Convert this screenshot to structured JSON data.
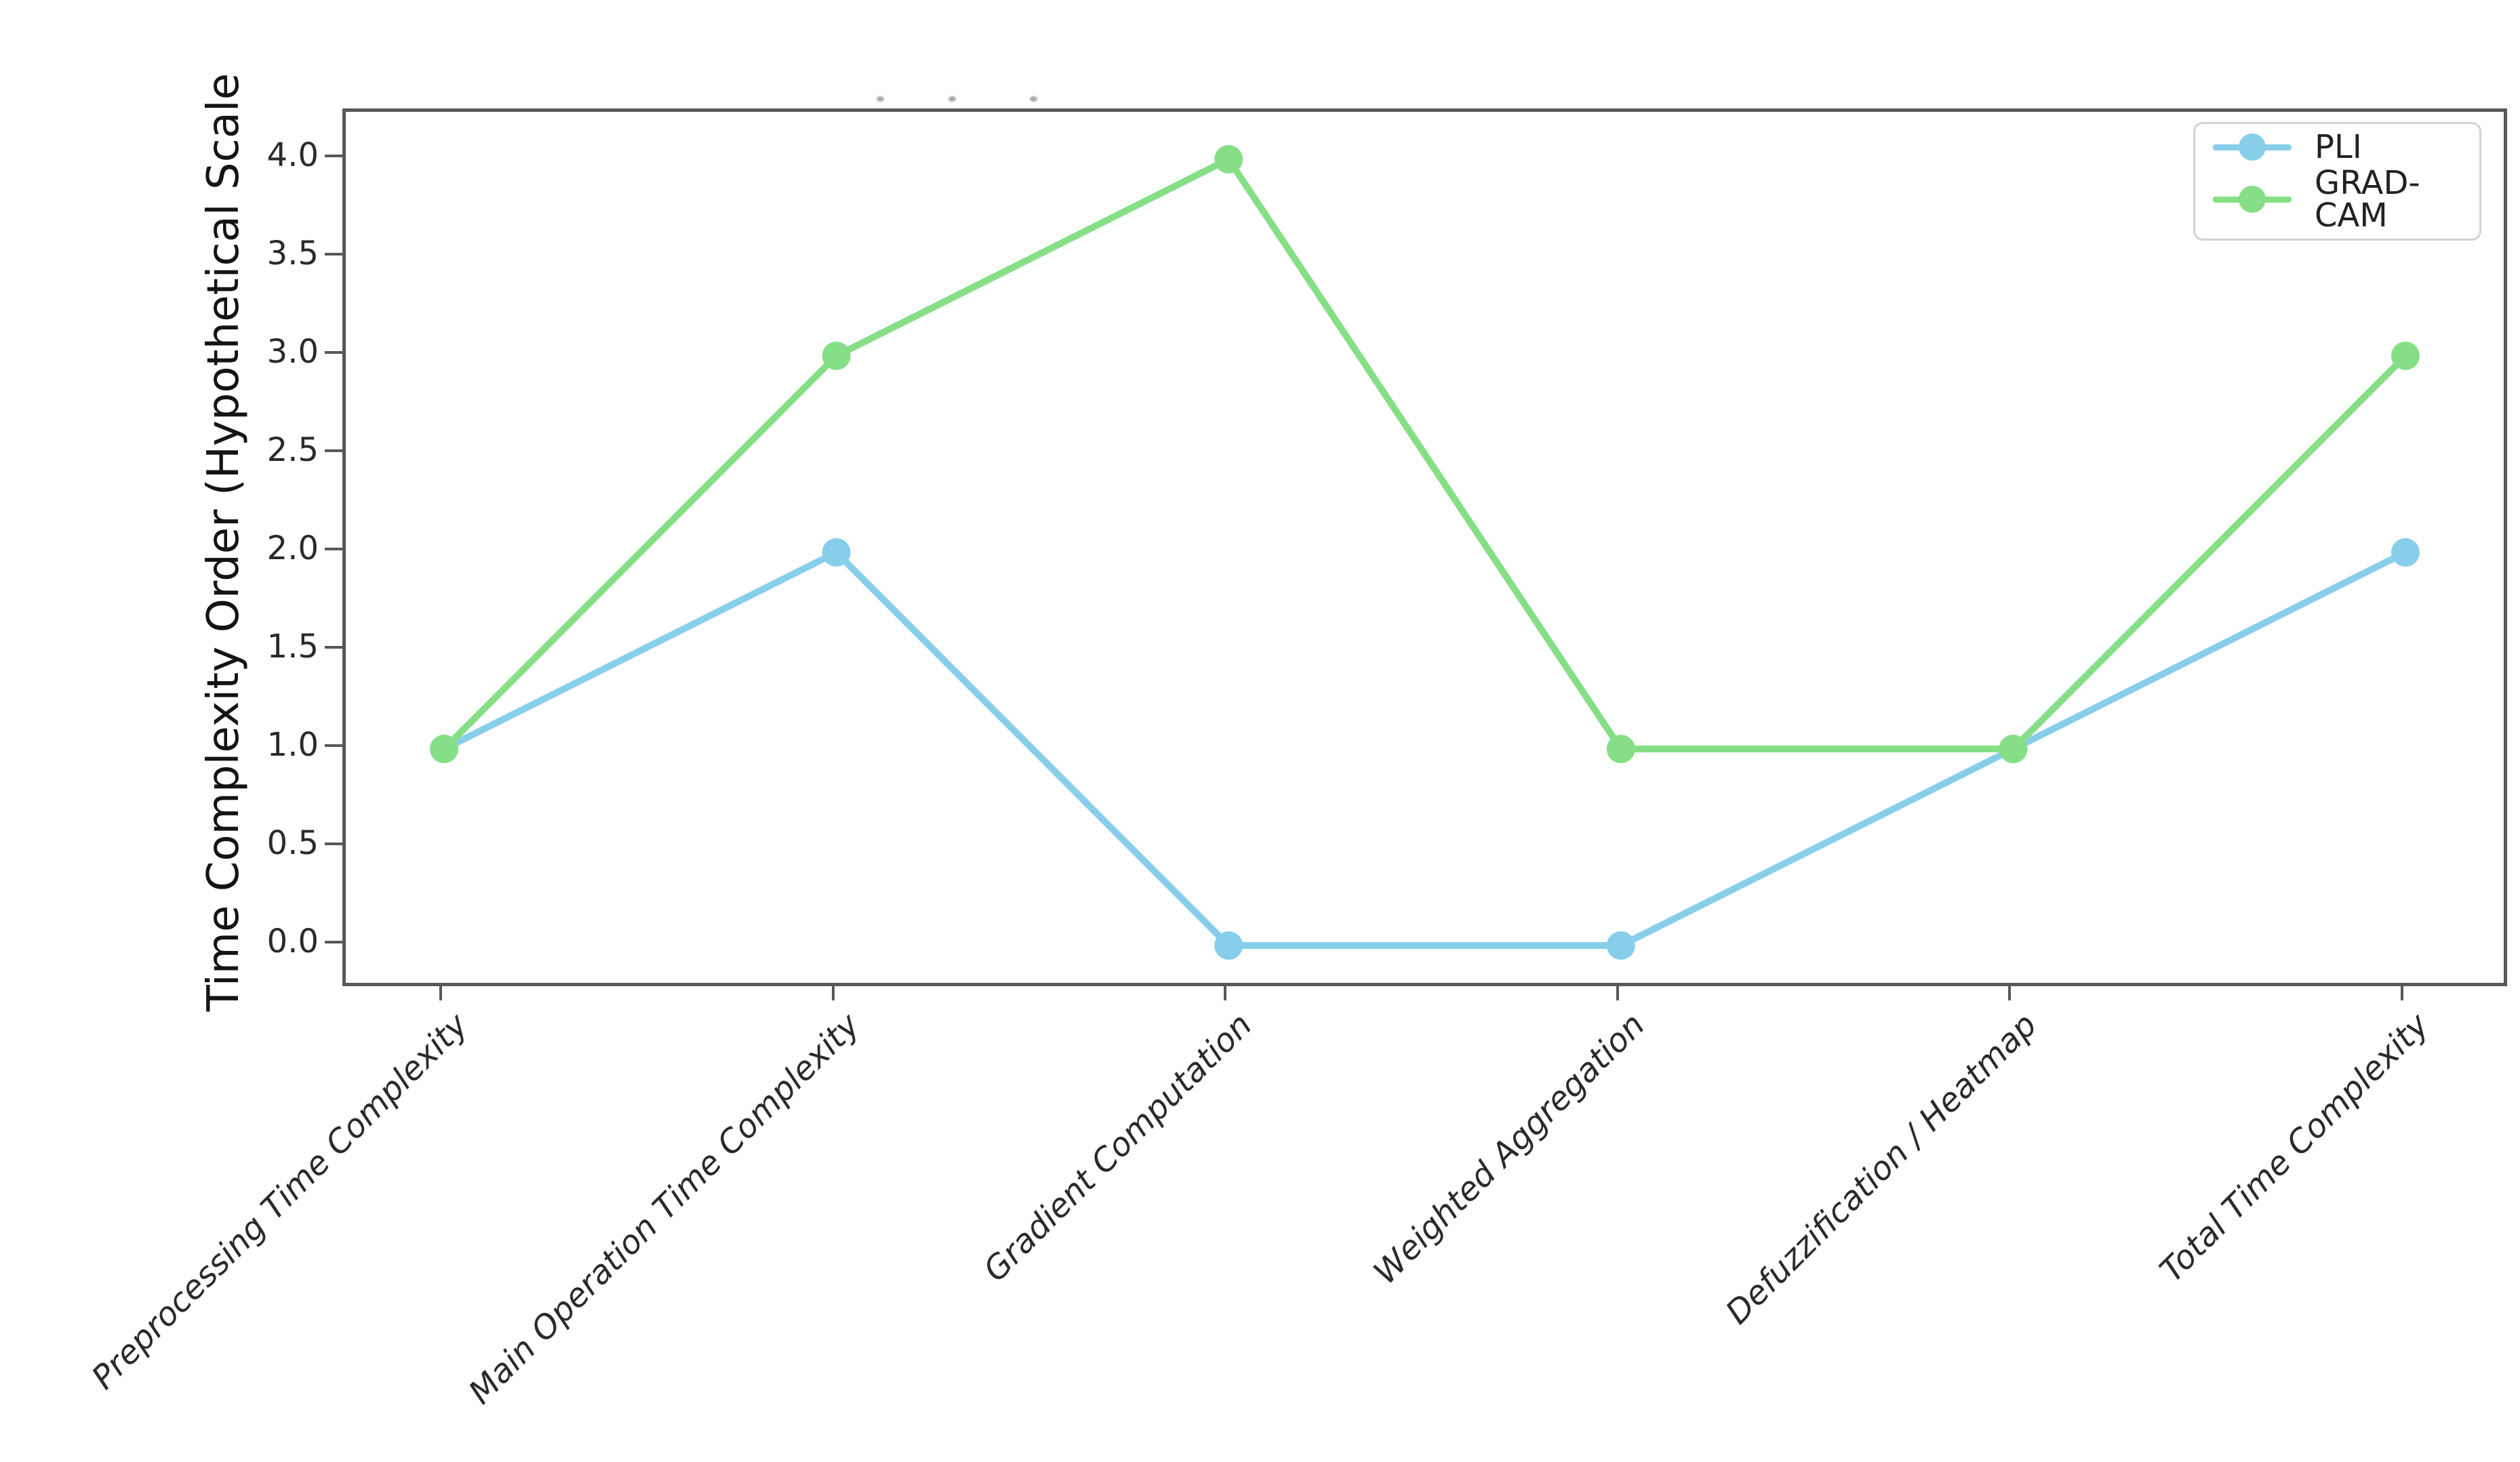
{
  "chart_data": {
    "type": "line",
    "categories": [
      "Preprocessing Time Complexity",
      "Main Operation Time Complexity",
      "Gradient Computation",
      "Weighted Aggregation",
      "Defuzzification / Heatmap",
      "Total Time Complexity"
    ],
    "series": [
      {
        "name": "PLI",
        "color": "#87CEEB",
        "values": [
          1,
          2,
          0,
          0,
          1,
          2
        ]
      },
      {
        "name": "GRAD-CAM",
        "color": "#86DF86",
        "values": [
          1,
          3,
          4,
          1,
          1,
          3
        ]
      }
    ],
    "title": "",
    "xlabel": "",
    "ylabel": "Time Complexity Order (Hypothetical Scale",
    "yticks": [
      0.0,
      0.5,
      1.0,
      1.5,
      2.0,
      2.5,
      3.0,
      3.5,
      4.0
    ],
    "ylim": [
      -0.19,
      4.24
    ],
    "grid": false,
    "marker": "o",
    "legend_position": "upper right"
  },
  "axes": {
    "spine_color": "#585858",
    "tick_label_color": "#2a2a2a"
  },
  "artifacts": {
    "clipped_title_marks_y": 142,
    "clipped_title_marks_x": [
      1293,
      1399,
      1519
    ]
  }
}
